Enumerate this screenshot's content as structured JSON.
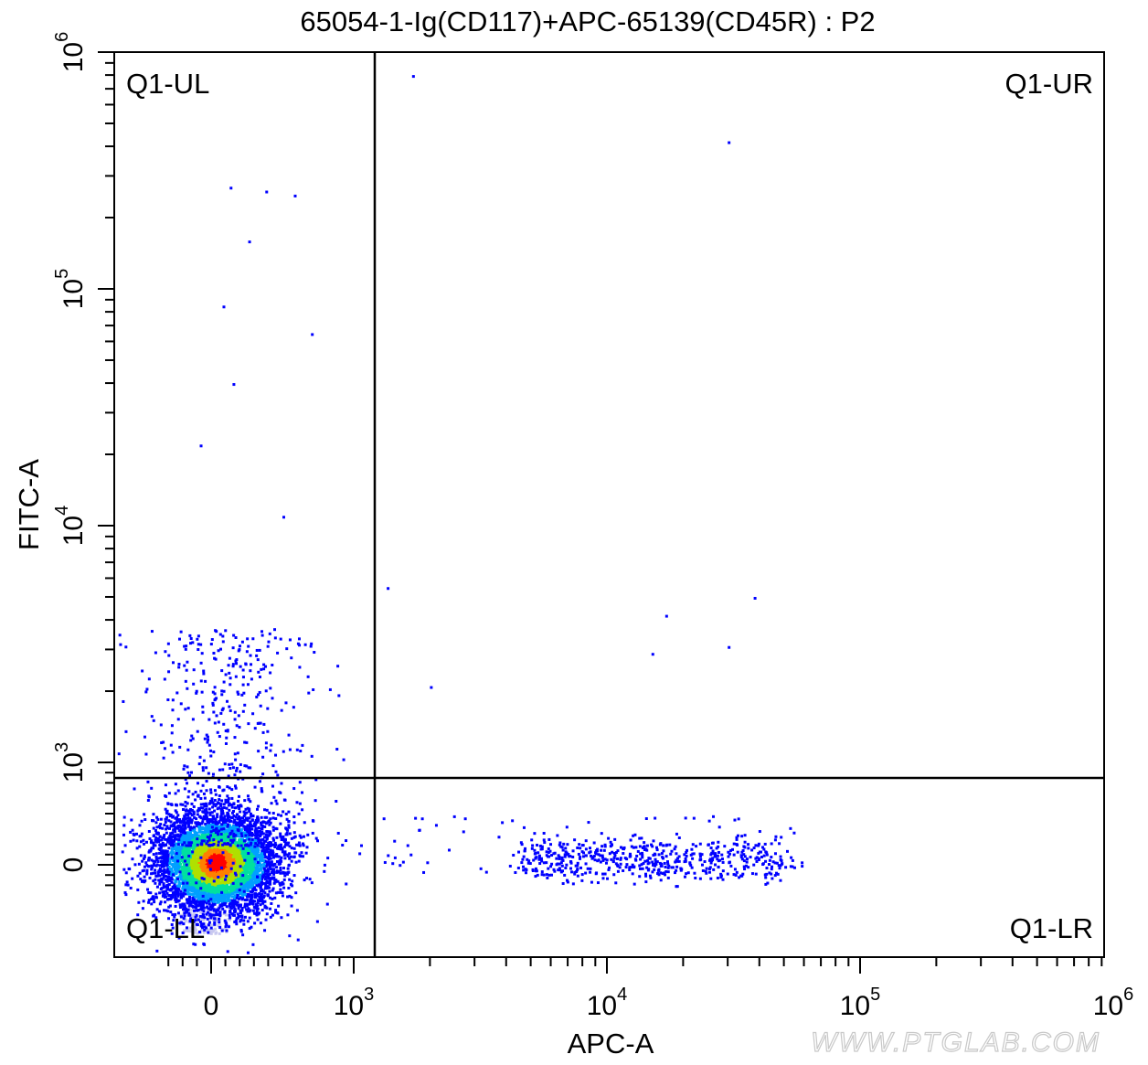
{
  "chart_data": {
    "type": "scatter",
    "title": "65054-1-Ig(CD117)+APC-65139(CD45R) : P2",
    "xlabel": "APC-A",
    "ylabel": "FITC-A",
    "x_scale": "biexponential",
    "y_scale": "biexponential",
    "xlim": [
      -320,
      1000000
    ],
    "ylim": [
      -270,
      1000000
    ],
    "x_ticks": [
      {
        "base": "0",
        "exp": "",
        "value": 0
      },
      {
        "base": "10",
        "exp": "3",
        "value": 1000
      },
      {
        "base": "10",
        "exp": "4",
        "value": 10000
      },
      {
        "base": "10",
        "exp": "5",
        "value": 100000
      },
      {
        "base": "10",
        "exp": "6",
        "value": 1000000
      }
    ],
    "y_ticks": [
      {
        "base": "0",
        "exp": "",
        "value": 0
      },
      {
        "base": "10",
        "exp": "3",
        "value": 1000
      },
      {
        "base": "10",
        "exp": "4",
        "value": 10000
      },
      {
        "base": "10",
        "exp": "5",
        "value": 100000
      },
      {
        "base": "10",
        "exp": "6",
        "value": 1000000
      }
    ],
    "quadrant_gate": {
      "x": 1200,
      "y": 900
    },
    "quadrants": {
      "upper_left": "Q1-UL",
      "upper_right": "Q1-UR",
      "lower_left": "Q1-LL",
      "lower_right": "Q1-LR"
    },
    "populations": [
      {
        "name": "main cluster",
        "center": [
          30,
          30
        ],
        "spread": "dense, centered near origin"
      },
      {
        "name": "Q1-LR population",
        "x_range": [
          3000,
          50000
        ],
        "y_range": [
          -150,
          300
        ]
      }
    ],
    "density_colors": [
      "#0000ff",
      "#00a0ff",
      "#00e0a0",
      "#b0e000",
      "#ff8000",
      "#ff0000"
    ],
    "outliers": [
      [
        1700,
        800000
      ],
      [
        30000,
        420000
      ],
      [
        130,
        270000
      ],
      [
        380,
        260000
      ],
      [
        580,
        250000
      ],
      [
        260,
        160000
      ],
      [
        80,
        85000
      ],
      [
        700,
        65000
      ],
      [
        150,
        40000
      ],
      [
        -80,
        22000
      ],
      [
        500,
        11000
      ],
      [
        1350,
        5500
      ],
      [
        38000,
        5000
      ],
      [
        17000,
        4200
      ],
      [
        30000,
        3100
      ],
      [
        15000,
        2900
      ],
      [
        2000,
        2100
      ]
    ]
  },
  "watermark": "WWW.PTGLAB.COM"
}
